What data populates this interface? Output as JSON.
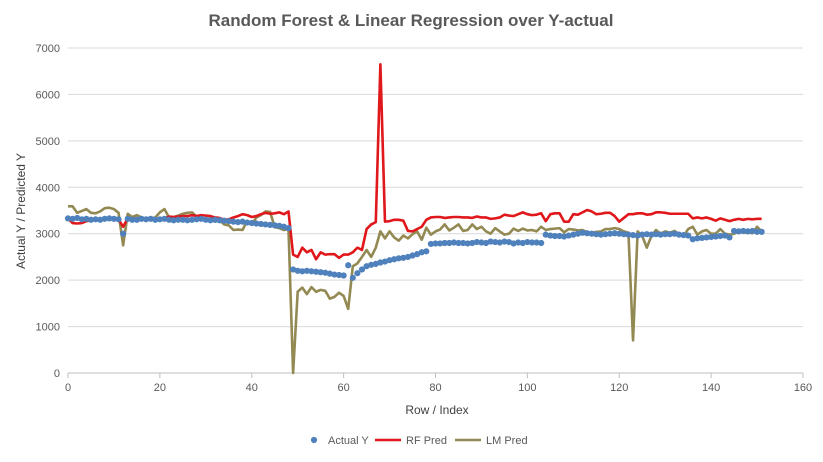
{
  "chart_data": {
    "type": "line",
    "title": "Random Forest & Linear Regression over Y-actual",
    "xlabel": "Row / Index",
    "ylabel": "Actual Y / Predicted Y",
    "xlim": [
      0,
      160
    ],
    "ylim": [
      0,
      7000
    ],
    "x_ticks": [
      0,
      20,
      40,
      60,
      80,
      100,
      120,
      140,
      160
    ],
    "y_ticks": [
      0,
      1000,
      2000,
      3000,
      4000,
      5000,
      6000,
      7000
    ],
    "grid": "horizontal",
    "legend_position": "bottom",
    "series": [
      {
        "name": "Actual Y",
        "style": "markers",
        "color": "#4F81BD",
        "x": [
          0,
          1,
          2,
          3,
          4,
          5,
          6,
          7,
          8,
          9,
          10,
          11,
          12,
          13,
          14,
          15,
          16,
          17,
          18,
          19,
          20,
          21,
          22,
          23,
          24,
          25,
          26,
          27,
          28,
          29,
          30,
          31,
          32,
          33,
          34,
          35,
          36,
          37,
          38,
          39,
          40,
          41,
          42,
          43,
          44,
          45,
          46,
          47,
          48,
          49,
          50,
          51,
          52,
          53,
          54,
          55,
          56,
          57,
          58,
          59,
          60,
          61,
          62,
          63,
          64,
          65,
          66,
          67,
          68,
          69,
          70,
          71,
          72,
          73,
          74,
          75,
          76,
          77,
          78,
          79,
          80,
          81,
          82,
          83,
          84,
          85,
          86,
          87,
          88,
          89,
          90,
          91,
          92,
          93,
          94,
          95,
          96,
          97,
          98,
          99,
          100,
          101,
          102,
          103,
          104,
          105,
          106,
          107,
          108,
          109,
          110,
          111,
          112,
          113,
          114,
          115,
          116,
          117,
          118,
          119,
          120,
          121,
          122,
          123,
          124,
          125,
          126,
          127,
          128,
          129,
          130,
          131,
          132,
          133,
          134,
          135,
          136,
          137,
          138,
          139,
          140,
          141,
          142,
          143,
          144,
          145,
          146,
          147,
          148,
          149,
          150,
          151
        ],
        "values": [
          3330,
          3320,
          3340,
          3310,
          3320,
          3300,
          3310,
          3300,
          3320,
          3330,
          3320,
          3310,
          3000,
          3320,
          3300,
          3300,
          3320,
          3310,
          3320,
          3300,
          3310,
          3320,
          3300,
          3290,
          3300,
          3300,
          3290,
          3300,
          3310,
          3320,
          3300,
          3290,
          3300,
          3290,
          3280,
          3270,
          3260,
          3250,
          3260,
          3240,
          3230,
          3220,
          3210,
          3200,
          3190,
          3180,
          3170,
          3150,
          3120,
          2230,
          2200,
          2190,
          2200,
          2190,
          2180,
          2170,
          2160,
          2140,
          2120,
          2110,
          2100,
          2320,
          2050,
          2150,
          2230,
          2300,
          2330,
          2350,
          2380,
          2400,
          2430,
          2450,
          2470,
          2480,
          2500,
          2530,
          2560,
          2600,
          2620,
          2780,
          2790,
          2790,
          2800,
          2800,
          2810,
          2800,
          2800,
          2790,
          2800,
          2820,
          2810,
          2800,
          2830,
          2820,
          2810,
          2830,
          2820,
          2790,
          2810,
          2800,
          2820,
          2810,
          2810,
          2800,
          2980,
          2960,
          2950,
          2950,
          2940,
          2960,
          2980,
          3000,
          3020,
          3010,
          3000,
          2990,
          2980,
          2990,
          3000,
          3010,
          3000,
          2990,
          2980,
          2970,
          2960,
          2980,
          2990,
          2980,
          2990,
          2980,
          2990,
          2990,
          3000,
          2980,
          2970,
          2960,
          2880,
          2900,
          2910,
          2920,
          2930,
          2940,
          2950,
          2960,
          2920,
          3060,
          3050,
          3060,
          3050,
          3060,
          3040,
          3040
        ]
      },
      {
        "name": "RF Pred",
        "style": "line",
        "color": "#E0171B",
        "x": [
          0,
          1,
          2,
          3,
          4,
          5,
          6,
          7,
          8,
          9,
          10,
          11,
          12,
          13,
          14,
          15,
          16,
          17,
          18,
          19,
          20,
          21,
          22,
          23,
          24,
          25,
          26,
          27,
          28,
          29,
          30,
          31,
          32,
          33,
          34,
          35,
          36,
          37,
          38,
          39,
          40,
          41,
          42,
          43,
          44,
          45,
          46,
          47,
          48,
          49,
          50,
          51,
          52,
          53,
          54,
          55,
          56,
          57,
          58,
          59,
          60,
          61,
          62,
          63,
          64,
          65,
          66,
          67,
          68,
          69,
          70,
          71,
          72,
          73,
          74,
          75,
          76,
          77,
          78,
          79,
          80,
          81,
          82,
          83,
          84,
          85,
          86,
          87,
          88,
          89,
          90,
          91,
          92,
          93,
          94,
          95,
          96,
          97,
          98,
          99,
          100,
          101,
          102,
          103,
          104,
          105,
          106,
          107,
          108,
          109,
          110,
          111,
          112,
          113,
          114,
          115,
          116,
          117,
          118,
          119,
          120,
          121,
          122,
          123,
          124,
          125,
          126,
          127,
          128,
          129,
          130,
          131,
          132,
          133,
          134,
          135,
          136,
          137,
          138,
          139,
          140,
          141,
          142,
          143,
          144,
          145,
          146,
          147,
          148,
          149,
          150,
          151
        ],
        "values": [
          3330,
          3230,
          3220,
          3230,
          3270,
          3290,
          3310,
          3320,
          3300,
          3330,
          3320,
          3310,
          3150,
          3330,
          3320,
          3330,
          3300,
          3320,
          3310,
          3320,
          3300,
          3330,
          3370,
          3360,
          3370,
          3380,
          3380,
          3400,
          3380,
          3400,
          3390,
          3380,
          3350,
          3340,
          3300,
          3310,
          3350,
          3380,
          3420,
          3400,
          3360,
          3380,
          3420,
          3450,
          3430,
          3440,
          3460,
          3420,
          3480,
          2550,
          2500,
          2700,
          2600,
          2650,
          2450,
          2600,
          2550,
          2560,
          2560,
          2480,
          2550,
          2550,
          2600,
          2700,
          2650,
          3100,
          3200,
          3250,
          6650,
          3260,
          3270,
          3300,
          3300,
          3280,
          3060,
          3050,
          3100,
          3150,
          3300,
          3350,
          3360,
          3360,
          3340,
          3350,
          3360,
          3360,
          3350,
          3350,
          3340,
          3370,
          3350,
          3350,
          3320,
          3330,
          3350,
          3410,
          3390,
          3380,
          3420,
          3460,
          3420,
          3400,
          3410,
          3440,
          3270,
          3420,
          3440,
          3440,
          3260,
          3260,
          3420,
          3410,
          3460,
          3510,
          3480,
          3420,
          3430,
          3450,
          3450,
          3380,
          3260,
          3340,
          3420,
          3420,
          3440,
          3440,
          3410,
          3420,
          3460,
          3460,
          3450,
          3430,
          3430,
          3430,
          3430,
          3430,
          3330,
          3350,
          3330,
          3350,
          3320,
          3280,
          3330,
          3300,
          3270,
          3300,
          3320,
          3300,
          3320,
          3310,
          3320,
          3320
        ]
      },
      {
        "name": "LM Pred",
        "style": "line",
        "color": "#938953",
        "x": [
          0,
          1,
          2,
          3,
          4,
          5,
          6,
          7,
          8,
          9,
          10,
          11,
          12,
          13,
          14,
          15,
          16,
          17,
          18,
          19,
          20,
          21,
          22,
          23,
          24,
          25,
          26,
          27,
          28,
          29,
          30,
          31,
          32,
          33,
          34,
          35,
          36,
          37,
          38,
          39,
          40,
          41,
          42,
          43,
          44,
          45,
          46,
          47,
          48,
          49,
          50,
          51,
          52,
          53,
          54,
          55,
          56,
          57,
          58,
          59,
          60,
          61,
          62,
          63,
          64,
          65,
          66,
          67,
          68,
          69,
          70,
          71,
          72,
          73,
          74,
          75,
          76,
          77,
          78,
          79,
          80,
          81,
          82,
          83,
          84,
          85,
          86,
          87,
          88,
          89,
          90,
          91,
          92,
          93,
          94,
          95,
          96,
          97,
          98,
          99,
          100,
          101,
          102,
          103,
          104,
          105,
          106,
          107,
          108,
          109,
          110,
          111,
          112,
          113,
          114,
          115,
          116,
          117,
          118,
          119,
          120,
          121,
          122,
          123,
          124,
          125,
          126,
          127,
          128,
          129,
          130,
          131,
          132,
          133,
          134,
          135,
          136,
          137,
          138,
          139,
          140,
          141,
          142,
          143,
          144,
          145,
          146,
          147,
          148,
          149,
          150,
          151
        ],
        "values": [
          3590,
          3590,
          3450,
          3490,
          3530,
          3450,
          3440,
          3480,
          3550,
          3560,
          3530,
          3450,
          2750,
          3430,
          3360,
          3400,
          3350,
          3320,
          3330,
          3350,
          3460,
          3530,
          3350,
          3360,
          3390,
          3430,
          3450,
          3460,
          3370,
          3340,
          3310,
          3330,
          3260,
          3290,
          3200,
          3180,
          3080,
          3090,
          3080,
          3280,
          3210,
          3350,
          3400,
          3480,
          3470,
          3140,
          3120,
          3080,
          3100,
          0,
          1750,
          1840,
          1700,
          1850,
          1750,
          1790,
          1770,
          1600,
          1640,
          1730,
          1660,
          1380,
          2300,
          2360,
          2500,
          2650,
          2500,
          2700,
          3050,
          2900,
          3050,
          2920,
          2850,
          2960,
          2900,
          2990,
          3050,
          2870,
          3130,
          2980,
          3050,
          3090,
          3200,
          3070,
          3130,
          3200,
          3060,
          3080,
          3200,
          3100,
          3150,
          3050,
          3000,
          3120,
          3050,
          2980,
          3000,
          3110,
          3060,
          3110,
          3070,
          3080,
          3050,
          3150,
          3080,
          3100,
          3110,
          3120,
          3030,
          3100,
          3090,
          3070,
          3080,
          3030,
          3020,
          3040,
          3050,
          3100,
          3100,
          3120,
          3100,
          3050,
          3020,
          700,
          3050,
          2950,
          2700,
          2950,
          3080,
          3000,
          3050,
          3020,
          3060,
          3000,
          2950,
          3100,
          3150,
          2980,
          3050,
          3080,
          3000,
          3000,
          3100,
          3000,
          2980,
          3000,
          3050,
          3020,
          3030,
          3010,
          3150,
          3050
        ]
      }
    ]
  }
}
